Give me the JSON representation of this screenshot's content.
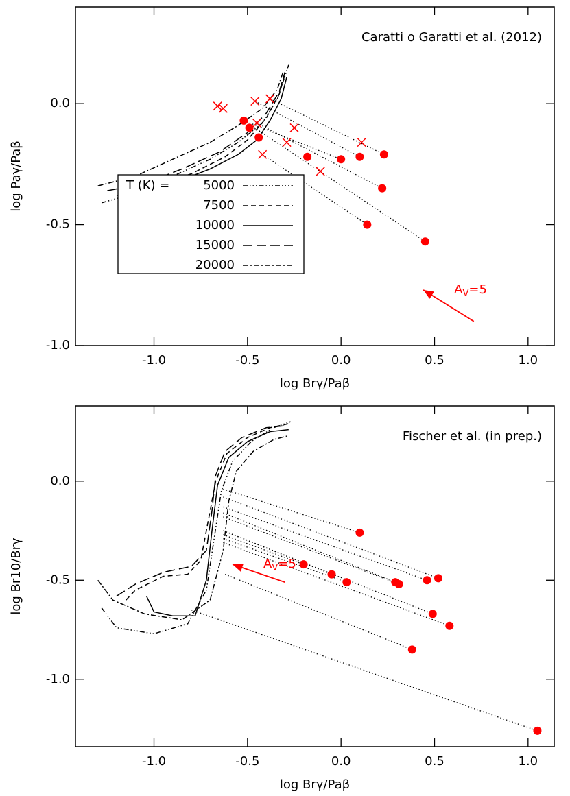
{
  "chart_data": [
    {
      "type": "line",
      "annotation": "Caratti o Garatti et al. (2012)",
      "xlabel": "log Brγ/Paβ",
      "ylabel": "log Paγ/Paβ",
      "xlim": [
        -1.42,
        1.14
      ],
      "ylim": [
        -1.0,
        0.4
      ],
      "xticks": [
        {
          "value": -1,
          "label": "-1.0"
        },
        -0.5,
        {
          "value": 0,
          "label": "0.0"
        },
        0.5,
        {
          "value": 1,
          "label": "1.0"
        }
      ],
      "yticks": [
        {
          "value": 0,
          "label": "0.0"
        },
        -0.5,
        {
          "value": -1,
          "label": "-1.0"
        }
      ],
      "legend": {
        "title": "T (K) =",
        "position": "center left"
      },
      "series": [
        {
          "name": "5000",
          "color": "#000000",
          "dash": "7,3,1.5,3,1.5,3,1.5,3",
          "x": [
            -1.28,
            -1.1,
            -0.9,
            -0.7,
            -0.55,
            -0.42,
            -0.34,
            -0.28
          ],
          "y": [
            -0.41,
            -0.37,
            -0.3,
            -0.23,
            -0.16,
            -0.08,
            0.02,
            0.16
          ]
        },
        {
          "name": "7500",
          "color": "#000000",
          "dash": "7,5",
          "x": [
            -1.2,
            -1.0,
            -0.8,
            -0.62,
            -0.5,
            -0.4,
            -0.33,
            -0.3
          ],
          "y": [
            -0.38,
            -0.34,
            -0.29,
            -0.22,
            -0.15,
            -0.06,
            0.04,
            0.12
          ]
        },
        {
          "name": "10000",
          "color": "#000000",
          "dash": "none",
          "x": [
            -1.05,
            -0.9,
            -0.7,
            -0.55,
            -0.45,
            -0.38,
            -0.32,
            -0.29
          ],
          "y": [
            -0.37,
            -0.33,
            -0.27,
            -0.21,
            -0.15,
            -0.07,
            0.02,
            0.11
          ]
        },
        {
          "name": "15000",
          "color": "#000000",
          "dash": "14,6",
          "x": [
            -1.25,
            -1.05,
            -0.85,
            -0.65,
            -0.5,
            -0.4,
            -0.33,
            -0.3
          ],
          "y": [
            -0.36,
            -0.33,
            -0.27,
            -0.2,
            -0.12,
            -0.04,
            0.05,
            0.13
          ]
        },
        {
          "name": "20000",
          "color": "#000000",
          "dash": "8,3,2,3",
          "x": [
            -1.3,
            -1.1,
            -0.9,
            -0.7,
            -0.55,
            -0.42,
            -0.34,
            -0.31
          ],
          "y": [
            -0.34,
            -0.3,
            -0.23,
            -0.16,
            -0.09,
            -0.02,
            0.06,
            0.13
          ]
        }
      ],
      "tracks": {
        "color": "#000000",
        "lines": [
          {
            "x": [
              -0.38,
              0.23
            ],
            "y": [
              0.02,
              -0.21
            ]
          },
          {
            "x": [
              -0.46,
              0.1
            ],
            "y": [
              0.01,
              -0.22
            ]
          },
          {
            "x": [
              -0.45,
              0.22
            ],
            "y": [
              -0.08,
              -0.35
            ]
          },
          {
            "x": [
              -0.52,
              0.45
            ],
            "y": [
              -0.07,
              -0.57
            ]
          },
          {
            "x": [
              -0.42,
              0.14
            ],
            "y": [
              -0.21,
              -0.5
            ]
          },
          {
            "x": [
              -0.52,
              0.0
            ],
            "y": [
              -0.07,
              -0.23
            ]
          }
        ]
      },
      "crosses": {
        "color": "#ff0000",
        "x": [
          -0.66,
          -0.63,
          -0.46,
          -0.38,
          -0.45,
          -0.25,
          -0.29,
          -0.42,
          -0.11,
          0.11
        ],
        "y": [
          -0.01,
          -0.02,
          0.01,
          0.02,
          -0.08,
          -0.1,
          -0.16,
          -0.21,
          -0.28,
          -0.16
        ]
      },
      "circles": {
        "color": "#ff0000",
        "x": [
          -0.52,
          -0.49,
          -0.44,
          -0.18,
          0.0,
          0.1,
          0.23,
          0.22,
          0.14,
          0.45
        ],
        "y": [
          -0.07,
          -0.1,
          -0.14,
          -0.22,
          -0.23,
          -0.22,
          -0.21,
          -0.35,
          -0.5,
          -0.57
        ]
      },
      "arrow": {
        "color": "#ff0000",
        "x": [
          0.71,
          0.44
        ],
        "y": [
          -0.9,
          -0.77
        ],
        "label": {
          "base": "A",
          "sub": "V",
          "rest": "=5"
        }
      }
    },
    {
      "type": "line",
      "annotation": "Fischer et al. (in prep.)",
      "xlabel": "log Brγ/Paβ",
      "ylabel": "log Br10/Brγ",
      "xlim": [
        -1.42,
        1.14
      ],
      "ylim": [
        -1.34,
        0.38
      ],
      "xticks": [
        {
          "value": -1,
          "label": "-1.0"
        },
        -0.5,
        {
          "value": 0,
          "label": "0.0"
        },
        0.5,
        {
          "value": 1,
          "label": "1.0"
        }
      ],
      "yticks": [
        {
          "value": 0,
          "label": "0.0"
        },
        -0.5,
        {
          "value": -1,
          "label": "-1.0"
        }
      ],
      "series": [
        {
          "color": "#000000",
          "dash": "7,3,1.5,3,1.5,3,1.5,3",
          "x": [
            -1.28,
            -1.2,
            -1.0,
            -0.82,
            -0.72,
            -0.68,
            -0.64,
            -0.58,
            -0.48,
            -0.36,
            -0.27
          ],
          "y": [
            -0.64,
            -0.74,
            -0.77,
            -0.72,
            -0.55,
            -0.3,
            -0.05,
            0.1,
            0.2,
            0.27,
            0.3
          ]
        },
        {
          "color": "#000000",
          "dash": "7,5",
          "x": [
            -1.15,
            -1.1,
            -0.95,
            -0.82,
            -0.75,
            -0.71,
            -0.67,
            -0.61,
            -0.5,
            -0.38,
            -0.28
          ],
          "y": [
            -0.6,
            -0.55,
            -0.48,
            -0.47,
            -0.4,
            -0.2,
            0.0,
            0.14,
            0.22,
            0.27,
            0.29
          ]
        },
        {
          "color": "#000000",
          "dash": "none",
          "x": [
            -1.04,
            -1.0,
            -0.9,
            -0.78,
            -0.72,
            -0.69,
            -0.66,
            -0.6,
            -0.5,
            -0.38,
            -0.28
          ],
          "y": [
            -0.58,
            -0.66,
            -0.68,
            -0.68,
            -0.5,
            -0.25,
            -0.02,
            0.12,
            0.2,
            0.25,
            0.26
          ]
        },
        {
          "color": "#000000",
          "dash": "14,6",
          "x": [
            -1.2,
            -1.1,
            -0.95,
            -0.8,
            -0.72,
            -0.69,
            -0.67,
            -0.62,
            -0.53,
            -0.4,
            -0.3
          ],
          "y": [
            -0.58,
            -0.52,
            -0.46,
            -0.43,
            -0.35,
            -0.15,
            0.03,
            0.15,
            0.22,
            0.27,
            0.28
          ]
        },
        {
          "color": "#000000",
          "dash": "8,3,2,3",
          "x": [
            -1.3,
            -1.22,
            -1.05,
            -0.85,
            -0.7,
            -0.63,
            -0.6,
            -0.56,
            -0.47,
            -0.36,
            -0.28
          ],
          "y": [
            -0.5,
            -0.6,
            -0.67,
            -0.7,
            -0.6,
            -0.35,
            -0.1,
            0.05,
            0.15,
            0.21,
            0.23
          ]
        }
      ],
      "tracks": {
        "color": "#000000",
        "lines": [
          {
            "x": [
              -0.63,
              0.1
            ],
            "y": [
              -0.04,
              -0.26
            ]
          },
          {
            "x": [
              -0.63,
              0.52
            ],
            "y": [
              -0.08,
              -0.49
            ]
          },
          {
            "x": [
              -0.63,
              0.46
            ],
            "y": [
              -0.13,
              -0.5
            ]
          },
          {
            "x": [
              -0.63,
              0.31
            ],
            "y": [
              -0.18,
              -0.52
            ]
          },
          {
            "x": [
              -0.63,
              0.29
            ],
            "y": [
              -0.16,
              -0.51
            ]
          },
          {
            "x": [
              -0.63,
              -0.2
            ],
            "y": [
              -0.27,
              -0.42
            ]
          },
          {
            "x": [
              -0.63,
              -0.05
            ],
            "y": [
              -0.25,
              -0.47
            ]
          },
          {
            "x": [
              -0.63,
              0.03
            ],
            "y": [
              -0.29,
              -0.51
            ]
          },
          {
            "x": [
              -0.63,
              0.49
            ],
            "y": [
              -0.25,
              -0.67
            ]
          },
          {
            "x": [
              -0.63,
              0.58
            ],
            "y": [
              -0.31,
              -0.73
            ]
          },
          {
            "x": [
              -0.62,
              0.38
            ],
            "y": [
              -0.47,
              -0.85
            ]
          },
          {
            "x": [
              -0.8,
              1.05
            ],
            "y": [
              -0.65,
              -1.26
            ]
          }
        ]
      },
      "circles": {
        "color": "#ff0000",
        "x": [
          -0.2,
          -0.05,
          0.03,
          0.1,
          0.29,
          0.31,
          0.46,
          0.52,
          0.49,
          0.58,
          0.38,
          1.05
        ],
        "y": [
          -0.42,
          -0.47,
          -0.51,
          -0.26,
          -0.51,
          -0.52,
          -0.5,
          -0.49,
          -0.67,
          -0.73,
          -0.85,
          -1.26
        ]
      },
      "arrow": {
        "color": "#ff0000",
        "x": [
          -0.3,
          -0.58
        ],
        "y": [
          -0.51,
          -0.42
        ],
        "label": {
          "base": "A",
          "sub": "V",
          "rest": "=5"
        }
      }
    }
  ]
}
